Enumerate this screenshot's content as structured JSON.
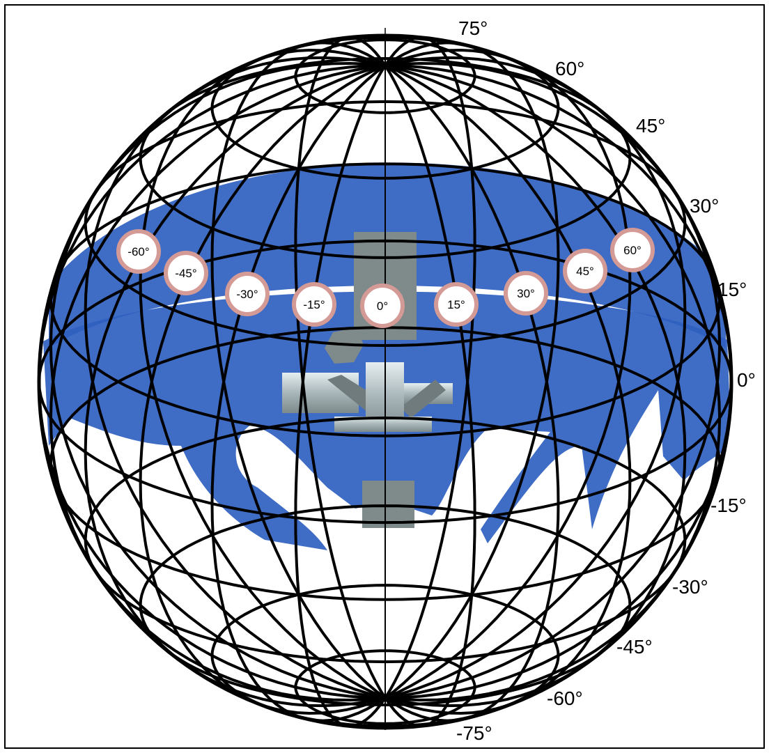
{
  "figure": {
    "latitude_labels": [
      "75°",
      "60°",
      "45°",
      "30°",
      "15°",
      "0°",
      "-15°",
      "-30°",
      "-45°",
      "-60°",
      "-75°"
    ],
    "azimuth_markers": [
      "-60°",
      "-45°",
      "-30°",
      "-15°",
      "0°",
      "15°",
      "30°",
      "45°",
      "60°"
    ],
    "colors": {
      "grid": "#000000",
      "band": "#2f5fbf",
      "marker_ring": "#d49a95",
      "instrument": "#7f8a8b"
    }
  }
}
